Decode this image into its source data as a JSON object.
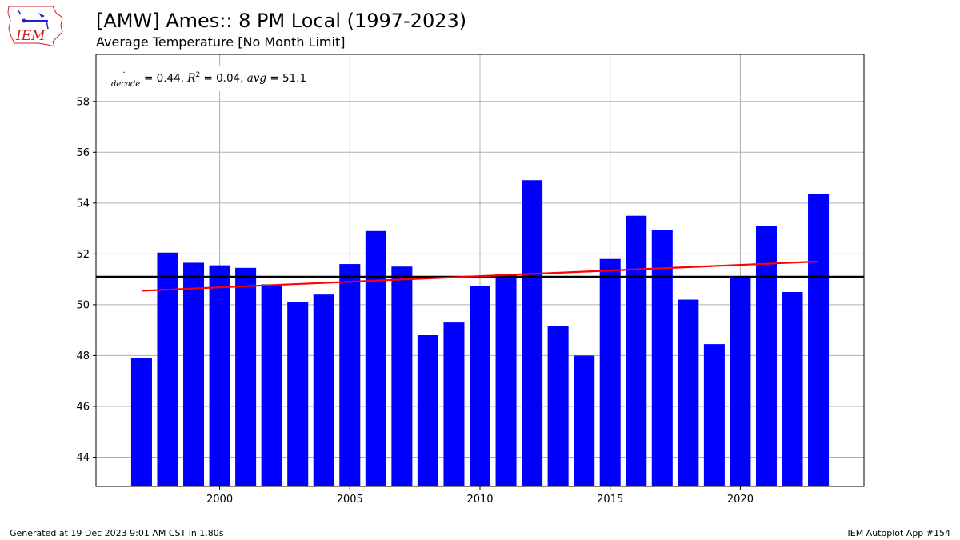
{
  "header": {
    "title": "[AMW] Ames:: 8 PM Local (1997-2023)",
    "subtitle": "Average Temperature [No Month Limit]",
    "logo_text": "IEM"
  },
  "footer": {
    "generated": "Generated at 19 Dec 2023 9:01 AM CST in 1.80s",
    "app": "IEM Autoplot App #154"
  },
  "colors": {
    "bar": "#0000ff",
    "trend": "#ff0000",
    "average": "#000000",
    "grid": "#b0b0b0",
    "logo": "#cc2222"
  },
  "chart_data": {
    "type": "bar",
    "title": "[AMW] Ames:: 8 PM Local (1997-2023)",
    "subtitle": "Average Temperature [No Month Limit]",
    "xlabel": "",
    "ylabel": "",
    "x": [
      1997,
      1998,
      1999,
      2000,
      2001,
      2002,
      2003,
      2004,
      2005,
      2006,
      2007,
      2008,
      2009,
      2010,
      2011,
      2012,
      2013,
      2014,
      2015,
      2016,
      2017,
      2018,
      2019,
      2020,
      2021,
      2022,
      2023
    ],
    "values": [
      47.9,
      52.05,
      51.65,
      51.55,
      51.45,
      50.8,
      50.1,
      50.4,
      51.6,
      52.9,
      51.5,
      48.8,
      49.3,
      50.75,
      51.2,
      54.9,
      49.15,
      48.0,
      51.8,
      53.5,
      52.95,
      50.2,
      48.45,
      51.05,
      53.1,
      50.5,
      54.35
    ],
    "xlim": [
      1995.25,
      2024.75
    ],
    "ylim": [
      42.85,
      59.85
    ],
    "xticks": [
      2000,
      2005,
      2010,
      2015,
      2020
    ],
    "yticks": [
      44,
      46,
      48,
      50,
      52,
      54,
      56,
      58
    ],
    "average": 51.1,
    "trend": {
      "x": [
        1997,
        2023
      ],
      "y": [
        50.55,
        51.7
      ]
    },
    "annotation": {
      "numerator": "·",
      "denominator": "decade",
      "slope": "0.44",
      "r2": "0.04",
      "avg": "51.1"
    },
    "grid": true
  }
}
